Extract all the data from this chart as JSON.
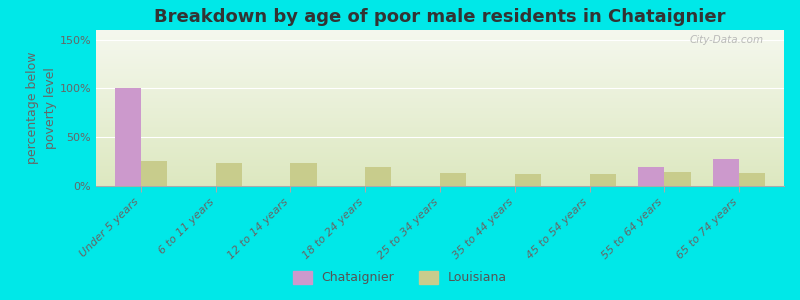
{
  "title": "Breakdown by age of poor male residents in Chataignier",
  "ylabel": "percentage below\npoverty level",
  "categories": [
    "Under 5 years",
    "6 to 11 years",
    "12 to 14 years",
    "18 to 24 years",
    "25 to 34 years",
    "35 to 44 years",
    "45 to 54 years",
    "55 to 64 years",
    "65 to 74 years"
  ],
  "chataignier": [
    100,
    0,
    0,
    0,
    0,
    0,
    0,
    20,
    28
  ],
  "louisiana": [
    26,
    24,
    24,
    20,
    13,
    12,
    12,
    14,
    13
  ],
  "chataignier_color": "#cc99cc",
  "louisiana_color": "#c8cc8c",
  "background_outer": "#00e8e8",
  "background_plot_top": "#f5f8ee",
  "background_plot_bottom": "#dde8c0",
  "ylim": [
    0,
    160
  ],
  "yticks": [
    0,
    50,
    100,
    150
  ],
  "ytick_labels": [
    "0%",
    "50%",
    "100%",
    "150%"
  ],
  "bar_width": 0.35,
  "title_fontsize": 13,
  "axis_fontsize": 9,
  "tick_fontsize": 8,
  "legend_fontsize": 9,
  "watermark": "City-Data.com"
}
